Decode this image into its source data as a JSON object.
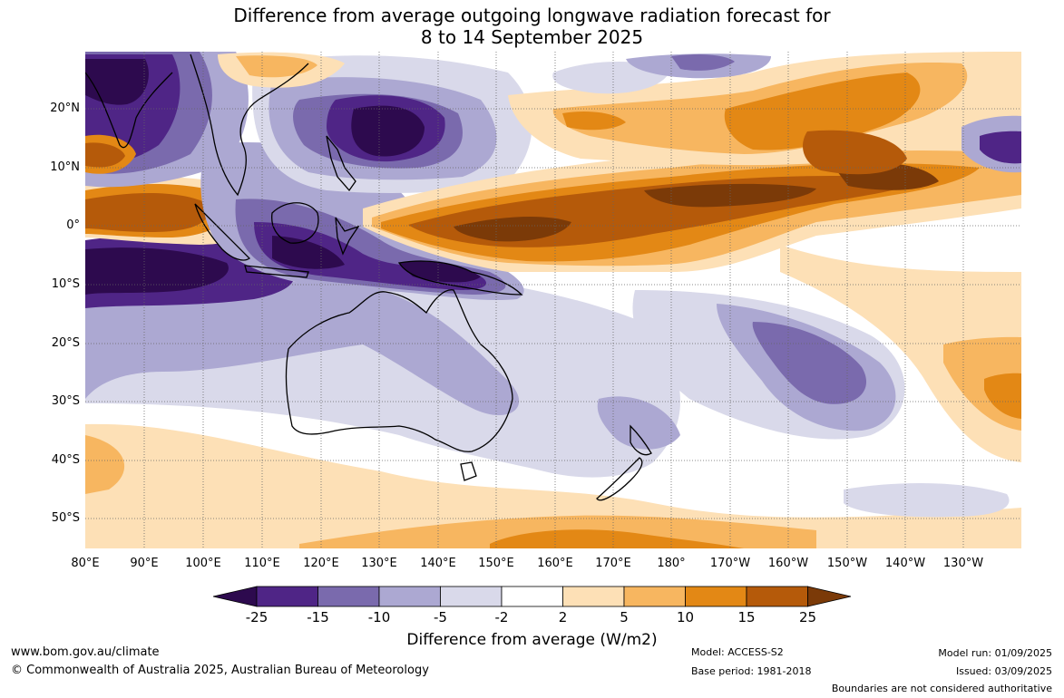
{
  "title_line1": "Difference from average outgoing longwave radiation forecast for",
  "title_line2": "8 to 14 September 2025",
  "lat_labels": [
    "20°N",
    "10°N",
    "0°",
    "10°S",
    "20°S",
    "30°S",
    "40°S",
    "50°S"
  ],
  "lon_labels": [
    "80°E",
    "90°E",
    "100°E",
    "110°E",
    "120°E",
    "130°E",
    "140°E",
    "150°E",
    "160°E",
    "170°E",
    "180°",
    "170°W",
    "160°W",
    "150°W",
    "140°W",
    "130°W"
  ],
  "colorbar": {
    "title": "Difference from average (W/m2)",
    "tick_labels": [
      "-25",
      "-15",
      "-10",
      "-5",
      "-2",
      "2",
      "5",
      "10",
      "15",
      "25"
    ],
    "colors": {
      "lt_-25": "#2d0a4e",
      "-25_-15": "#4f2586",
      "-15_-10": "#7a6aad",
      "-10_-5": "#aca8d2",
      "-5_-2": "#d9d9ea",
      "-2_2": "#ffffff",
      "2_5": "#fde0b6",
      "5_10": "#f7b660",
      "10_15": "#e38815",
      "15_25": "#b55a0a",
      "gt_25": "#7b3a08"
    }
  },
  "footer": {
    "url": "www.bom.gov.au/climate",
    "copyright": "© Commonwealth of Australia 2025, Australian Bureau of Meteorology",
    "model": "Model: ACCESS-S2",
    "base_period": "Base period: 1981-2018",
    "model_run": "Model run: 01/09/2025",
    "issued": "Issued: 03/09/2025",
    "disclaimer": "Boundaries are not considered authoritative"
  }
}
